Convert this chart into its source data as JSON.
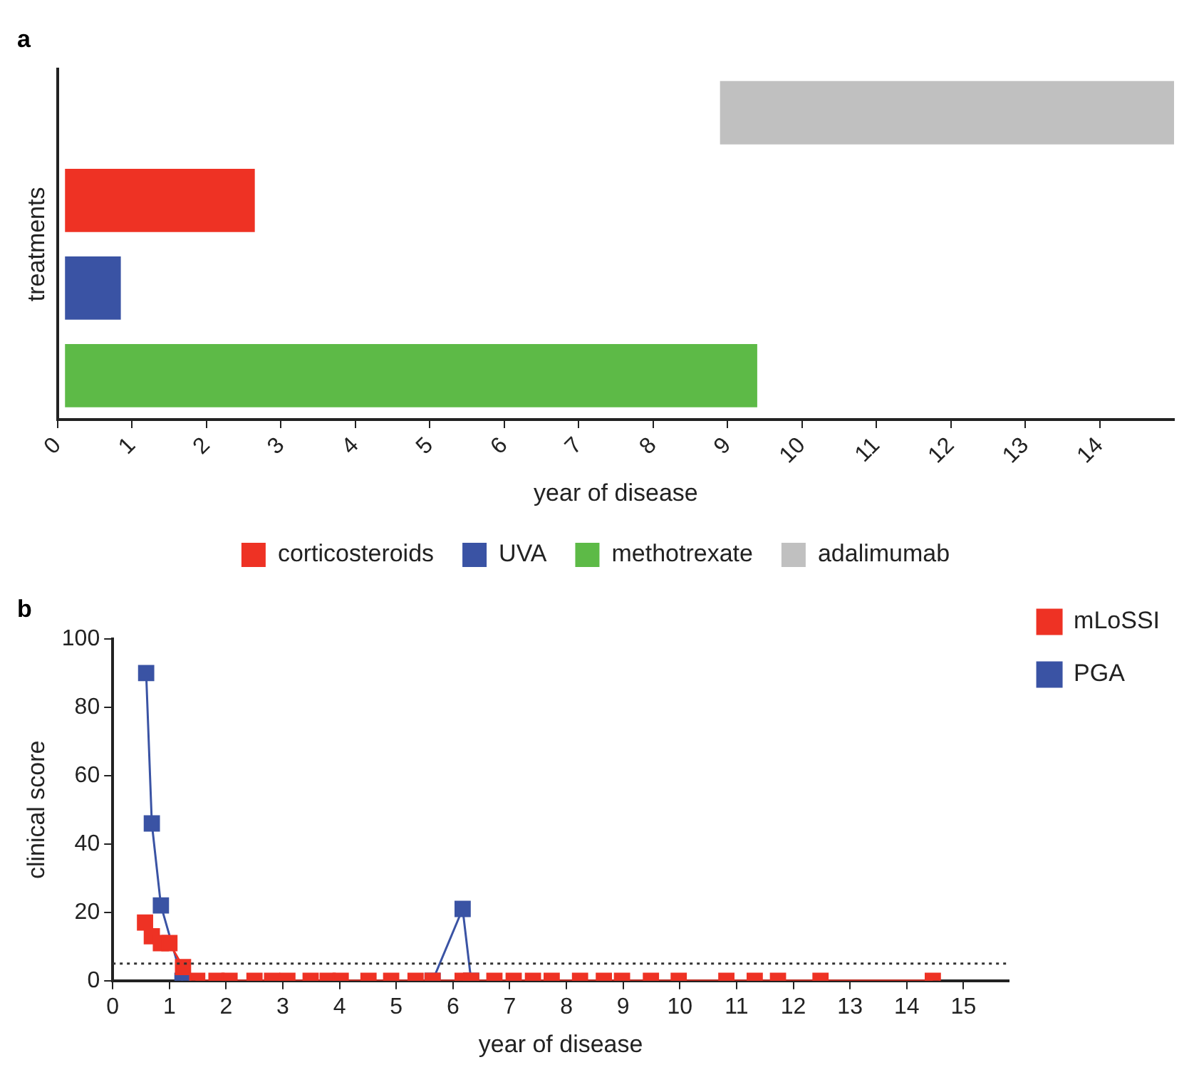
{
  "chart_data": [
    {
      "type": "bar",
      "title": "a",
      "orientation": "horizontal",
      "xlabel": "year of disease",
      "ylabel": "treatments",
      "categories": [
        null,
        null,
        null,
        null
      ],
      "xlim": [
        0,
        15
      ],
      "xticks": [
        0,
        1,
        2,
        3,
        4,
        5,
        6,
        7,
        8,
        9,
        10,
        11,
        12,
        13,
        14
      ],
      "grid": false,
      "legend": "bottom",
      "tick_labels": "x",
      "series": [
        {
          "name": "corticosteroids",
          "color": "#ee3224",
          "values": [
            null,
            2.55,
            null,
            null
          ],
          "base": [
            null,
            0.1,
            null,
            null
          ]
        },
        {
          "name": "UVA",
          "color": "#3a53a4",
          "values": [
            null,
            null,
            0.75,
            null
          ],
          "base": [
            null,
            null,
            0.1,
            null
          ]
        },
        {
          "name": "methotrexate",
          "color": "#5dba47",
          "values": [
            null,
            null,
            null,
            9.3
          ],
          "base": [
            null,
            null,
            null,
            0.1
          ]
        },
        {
          "name": "adalimumab",
          "color": "#c0c0c0",
          "values": [
            6.1,
            null,
            null,
            null
          ],
          "base": [
            8.9,
            null,
            null,
            null
          ]
        }
      ]
    },
    {
      "type": "line",
      "title": "b",
      "xlabel": "year of disease",
      "ylabel": "clinical score",
      "xlim": [
        0,
        15.8
      ],
      "xticks": [
        0,
        1,
        2,
        3,
        4,
        5,
        6,
        7,
        8,
        9,
        10,
        11,
        12,
        13,
        14,
        15
      ],
      "ylim": [
        0,
        100
      ],
      "yticks": [
        0,
        20,
        40,
        60,
        80,
        100
      ],
      "grid": false,
      "legend": "top right",
      "marker": "square",
      "line_style": "solid",
      "ref_lines": [
        {
          "axis": "y",
          "value": 5,
          "color": "#333333",
          "line_style": "dotted"
        }
      ],
      "series": [
        {
          "name": "PGA",
          "color": "#3a53a4",
          "x": [
            0.59,
            0.69,
            0.85,
            1.23,
            3.0,
            5.64,
            6.17,
            6.32
          ],
          "values": [
            90,
            46,
            22,
            0,
            null,
            0,
            21,
            0
          ]
        },
        {
          "name": "mLoSSI",
          "color": "#ee3224",
          "x": [
            0.57,
            0.69,
            0.85,
            1.0,
            1.24,
            1.49,
            1.83,
            2.06,
            2.5,
            2.81,
            3.08,
            3.49,
            3.79,
            4.02,
            4.51,
            4.91,
            5.34,
            5.64,
            6.17,
            6.32,
            6.73,
            7.07,
            7.41,
            7.74,
            8.24,
            8.66,
            8.98,
            9.49,
            9.98,
            10.82,
            11.32,
            11.73,
            12.48,
            14.46
          ],
          "values": [
            17,
            13,
            11,
            11,
            4,
            0,
            0,
            0,
            0,
            0,
            0,
            0,
            0,
            0,
            0,
            0,
            0,
            0,
            0,
            0,
            0,
            0,
            0,
            0,
            0,
            0,
            0,
            0,
            0,
            0,
            0,
            0,
            0,
            0
          ]
        }
      ]
    }
  ]
}
